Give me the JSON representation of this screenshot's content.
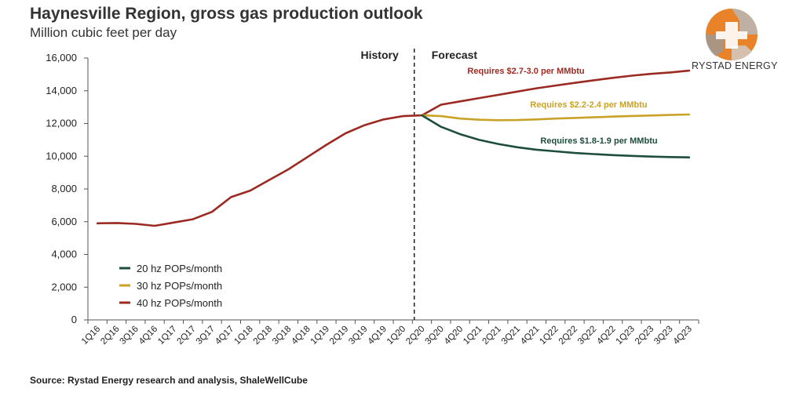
{
  "header": {
    "title": "Haynesville Region, gross gas production outlook",
    "subtitle": "Million cubic feet per day"
  },
  "source": "Source: Rystad Energy research and analysis, ShaleWellCube",
  "brand": {
    "name": "RYSTAD ENERGY",
    "logo_icon": "rystad-globe-logo",
    "colors": [
      "#e8832a",
      "#9a9a9a"
    ]
  },
  "chart_data": {
    "type": "line",
    "title": "Haynesville Region, gross gas production outlook",
    "ylabel": "Million cubic feet per day",
    "xlabel": "",
    "ylim": [
      0,
      16000
    ],
    "yticks": [
      0,
      2000,
      4000,
      6000,
      8000,
      10000,
      12000,
      14000,
      16000
    ],
    "ytick_labels": [
      "0",
      "2,000",
      "4,000",
      "6,000",
      "8,000",
      "10,000",
      "12,000",
      "14,000",
      "16,000"
    ],
    "categories": [
      "1Q16",
      "2Q16",
      "3Q16",
      "4Q16",
      "1Q17",
      "2Q17",
      "3Q17",
      "4Q17",
      "1Q18",
      "2Q18",
      "3Q18",
      "4Q18",
      "1Q19",
      "2Q19",
      "3Q19",
      "4Q19",
      "1Q20",
      "2Q20",
      "3Q20",
      "4Q20",
      "1Q21",
      "2Q21",
      "3Q21",
      "4Q21",
      "1Q22",
      "2Q22",
      "3Q22",
      "4Q22",
      "1Q23",
      "2Q23",
      "3Q23",
      "4Q23"
    ],
    "xtick_labels": [
      "1Q16",
      "2Q16",
      "3Q16",
      "4Q16",
      "1Q17",
      "2Q17",
      "3Q17",
      "4Q17",
      "1Q18",
      "2Q18",
      "3Q18",
      "4Q18",
      "1Q19",
      "2Q19",
      "3Q19",
      "4Q19",
      "1Q20",
      "2Q20",
      "3Q20",
      "4Q20",
      "1Q21",
      "2Q21",
      "3Q21",
      "4Q21",
      "1Q22",
      "2Q22",
      "3Q22",
      "4Q22",
      "1Q23",
      "2Q23",
      "3Q23",
      "4Q23"
    ],
    "grid": false,
    "legend_position": "bottom-left",
    "divider": {
      "at": "2Q20",
      "left_label": "History",
      "right_label": "Forecast"
    },
    "series": [
      {
        "name": "20 hz POPs/month",
        "color": "#1e4d3b",
        "annotation": "Requires $1.8-1.9 per MMbtu",
        "values": [
          null,
          null,
          null,
          null,
          null,
          null,
          null,
          null,
          null,
          null,
          null,
          null,
          null,
          null,
          null,
          null,
          null,
          12500,
          11800,
          11350,
          11000,
          10750,
          10550,
          10400,
          10300,
          10200,
          10130,
          10070,
          10020,
          9980,
          9950,
          9930
        ]
      },
      {
        "name": "30 hz POPs/month",
        "color": "#c9a227",
        "annotation": "Requires $2.2-2.4 per MMbtu",
        "values": [
          null,
          null,
          null,
          null,
          null,
          null,
          null,
          null,
          null,
          null,
          null,
          null,
          null,
          null,
          null,
          null,
          null,
          12500,
          12450,
          12300,
          12230,
          12200,
          12210,
          12250,
          12300,
          12340,
          12380,
          12420,
          12460,
          12490,
          12520,
          12550
        ]
      },
      {
        "name": "40 hz POPs/month",
        "color": "#9b2a22",
        "annotation": "Requires $2.7-3.0 per MMbtu",
        "values": [
          5900,
          5920,
          5870,
          5750,
          5950,
          6150,
          6600,
          7500,
          7900,
          8550,
          9200,
          9950,
          10700,
          11400,
          11900,
          12250,
          12450,
          12500,
          13150,
          13350,
          13550,
          13750,
          13950,
          14150,
          14320,
          14480,
          14640,
          14790,
          14920,
          15030,
          15120,
          15230
        ]
      }
    ]
  }
}
